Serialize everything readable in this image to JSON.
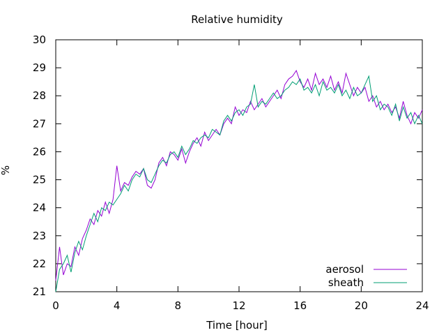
{
  "chart_data": {
    "type": "line",
    "title": "Relative humidity",
    "xlabel": "Time [hour]",
    "ylabel": "%",
    "xlim": [
      0,
      24
    ],
    "ylim": [
      21,
      30
    ],
    "xticks": [
      0,
      4,
      8,
      12,
      16,
      20,
      24
    ],
    "yticks": [
      21,
      22,
      23,
      24,
      25,
      26,
      27,
      28,
      29,
      30
    ],
    "grid": false,
    "legend_position": "bottom-right",
    "series": [
      {
        "name": "aerosol",
        "color": "#9400d3",
        "x": [
          0,
          0.25,
          0.5,
          0.75,
          1,
          1.25,
          1.5,
          1.75,
          2,
          2.25,
          2.5,
          2.75,
          3,
          3.25,
          3.5,
          3.75,
          4,
          4.25,
          4.5,
          4.75,
          5,
          5.25,
          5.5,
          5.75,
          6,
          6.25,
          6.5,
          6.75,
          7,
          7.25,
          7.5,
          7.75,
          8,
          8.25,
          8.5,
          8.75,
          9,
          9.25,
          9.5,
          9.75,
          10,
          10.25,
          10.5,
          10.75,
          11,
          11.25,
          11.5,
          11.75,
          12,
          12.25,
          12.5,
          12.75,
          13,
          13.25,
          13.5,
          13.75,
          14,
          14.25,
          14.5,
          14.75,
          15,
          15.25,
          15.5,
          15.75,
          16,
          16.25,
          16.5,
          16.75,
          17,
          17.25,
          17.5,
          17.75,
          18,
          18.25,
          18.5,
          18.75,
          19,
          19.25,
          19.5,
          19.75,
          20,
          20.25,
          20.5,
          20.75,
          21,
          21.25,
          21.5,
          21.75,
          22,
          22.25,
          22.5,
          22.75,
          23,
          23.25,
          23.5,
          23.75,
          24
        ],
        "y": [
          21.4,
          22.6,
          21.6,
          22.0,
          21.9,
          22.6,
          22.3,
          22.9,
          23.2,
          23.6,
          23.4,
          23.9,
          23.7,
          24.2,
          23.8,
          24.3,
          25.5,
          24.6,
          24.9,
          24.8,
          25.1,
          25.3,
          25.2,
          25.4,
          24.8,
          24.7,
          25.0,
          25.6,
          25.8,
          25.5,
          26.0,
          25.9,
          25.7,
          26.1,
          25.6,
          26.0,
          26.3,
          26.5,
          26.2,
          26.7,
          26.4,
          26.6,
          26.8,
          26.6,
          27.0,
          27.2,
          27.0,
          27.6,
          27.3,
          27.5,
          27.4,
          27.8,
          27.5,
          27.7,
          27.9,
          27.6,
          27.8,
          28.0,
          28.2,
          27.9,
          28.4,
          28.6,
          28.7,
          28.9,
          28.5,
          28.3,
          28.6,
          28.2,
          28.8,
          28.4,
          28.6,
          28.3,
          28.7,
          28.2,
          28.5,
          28.1,
          28.8,
          28.4,
          28.0,
          28.3,
          28.1,
          28.3,
          27.8,
          28.0,
          27.6,
          27.8,
          27.5,
          27.7,
          27.4,
          27.6,
          27.2,
          27.8,
          27.3,
          27.0,
          27.4,
          27.2,
          27.5
        ]
      },
      {
        "name": "sheath",
        "color": "#009e73",
        "x": [
          0,
          0.25,
          0.5,
          0.75,
          1,
          1.25,
          1.5,
          1.75,
          2,
          2.25,
          2.5,
          2.75,
          3,
          3.25,
          3.5,
          3.75,
          4,
          4.25,
          4.5,
          4.75,
          5,
          5.25,
          5.5,
          5.75,
          6,
          6.25,
          6.5,
          6.75,
          7,
          7.25,
          7.5,
          7.75,
          8,
          8.25,
          8.5,
          8.75,
          9,
          9.25,
          9.5,
          9.75,
          10,
          10.25,
          10.5,
          10.75,
          11,
          11.25,
          11.5,
          11.75,
          12,
          12.25,
          12.5,
          12.75,
          13,
          13.25,
          13.5,
          13.75,
          14,
          14.25,
          14.5,
          14.75,
          15,
          15.25,
          15.5,
          15.75,
          16,
          16.25,
          16.5,
          16.75,
          17,
          17.25,
          17.5,
          17.75,
          18,
          18.25,
          18.5,
          18.75,
          19,
          19.25,
          19.5,
          19.75,
          20,
          20.25,
          20.5,
          20.75,
          21,
          21.25,
          21.5,
          21.75,
          22,
          22.25,
          22.5,
          22.75,
          23,
          23.25,
          23.5,
          23.75,
          24
        ],
        "y": [
          21.0,
          21.8,
          22.0,
          22.3,
          21.7,
          22.4,
          22.8,
          22.5,
          23.0,
          23.4,
          23.8,
          23.5,
          24.0,
          23.9,
          24.2,
          24.1,
          24.3,
          24.5,
          24.8,
          24.6,
          25.0,
          25.2,
          25.1,
          25.4,
          25.0,
          24.9,
          25.2,
          25.5,
          25.7,
          25.6,
          25.9,
          26.0,
          25.8,
          26.2,
          25.9,
          26.1,
          26.4,
          26.3,
          26.5,
          26.6,
          26.5,
          26.8,
          26.7,
          26.6,
          27.1,
          27.3,
          27.1,
          27.4,
          27.5,
          27.3,
          27.6,
          27.7,
          28.4,
          27.6,
          27.8,
          27.7,
          27.9,
          28.1,
          27.9,
          28.0,
          28.2,
          28.3,
          28.5,
          28.4,
          28.6,
          28.2,
          28.3,
          28.1,
          28.4,
          28.0,
          28.5,
          28.2,
          28.3,
          28.1,
          28.4,
          28.0,
          28.2,
          27.9,
          28.3,
          28.0,
          28.1,
          28.4,
          28.7,
          27.8,
          28.0,
          27.5,
          27.7,
          27.6,
          27.3,
          27.7,
          27.1,
          27.6,
          27.2,
          27.4,
          27.0,
          27.3,
          27.0
        ]
      }
    ]
  }
}
